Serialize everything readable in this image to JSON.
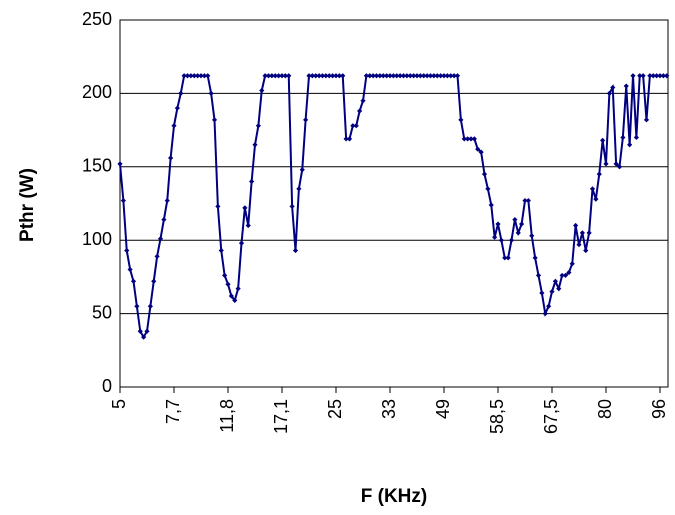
{
  "chart_data": {
    "type": "line",
    "x_label": "F (KHz)",
    "y_label": "Pthr (W)",
    "categories": [
      "5",
      null,
      null,
      null,
      null,
      null,
      null,
      null,
      null,
      null,
      null,
      null,
      null,
      null,
      null,
      null,
      "7,7",
      null,
      null,
      null,
      null,
      null,
      null,
      null,
      null,
      null,
      null,
      null,
      null,
      null,
      null,
      null,
      "11,8",
      null,
      null,
      null,
      null,
      null,
      null,
      null,
      null,
      null,
      null,
      null,
      null,
      null,
      null,
      null,
      "17,1",
      null,
      null,
      null,
      null,
      null,
      null,
      null,
      null,
      null,
      null,
      null,
      null,
      null,
      null,
      null,
      "25",
      null,
      null,
      null,
      null,
      null,
      null,
      null,
      null,
      null,
      null,
      null,
      null,
      null,
      null,
      null,
      "33",
      null,
      null,
      null,
      null,
      null,
      null,
      null,
      null,
      null,
      null,
      null,
      null,
      null,
      null,
      null,
      "49",
      null,
      null,
      null,
      null,
      null,
      null,
      null,
      null,
      null,
      null,
      null,
      null,
      null,
      null,
      null,
      "58,5",
      null,
      null,
      null,
      null,
      null,
      null,
      null,
      null,
      null,
      null,
      null,
      null,
      null,
      null,
      null,
      "67,5",
      null,
      null,
      null,
      null,
      null,
      null,
      null,
      null,
      null,
      null,
      null,
      null,
      null,
      null,
      null,
      "80",
      null,
      null,
      null,
      null,
      null,
      null,
      null,
      null,
      null,
      null,
      null,
      null,
      null,
      null,
      null,
      "96",
      null,
      null
    ],
    "series": [
      {
        "color": "#000080",
        "values": [
          152,
          127,
          93,
          80,
          72,
          55,
          38,
          34,
          38,
          55,
          72,
          89,
          101,
          114,
          127,
          156,
          178,
          190,
          200,
          212,
          212,
          212,
          212,
          212,
          212,
          212,
          212,
          200,
          182,
          123,
          93,
          76,
          70,
          62,
          59,
          67,
          98,
          122,
          110,
          140,
          165,
          178,
          202,
          212,
          212,
          212,
          212,
          212,
          212,
          212,
          212,
          123,
          93,
          135,
          148,
          182,
          212,
          212,
          212,
          212,
          212,
          212,
          212,
          212,
          212,
          212,
          212,
          169,
          169,
          178,
          178,
          188,
          195,
          212,
          212,
          212,
          212,
          212,
          212,
          212,
          212,
          212,
          212,
          212,
          212,
          212,
          212,
          212,
          212,
          212,
          212,
          212,
          212,
          212,
          212,
          212,
          212,
          212,
          212,
          212,
          212,
          182,
          169,
          169,
          169,
          169,
          162,
          160,
          145,
          135,
          124,
          102,
          111,
          100,
          88,
          88,
          100,
          114,
          105,
          111,
          127,
          127,
          103,
          88,
          76,
          64,
          50,
          55,
          65,
          72,
          67,
          76,
          76,
          78,
          84,
          110,
          97,
          105,
          93,
          105,
          135,
          128,
          145,
          168,
          152,
          200,
          204,
          152,
          150,
          170,
          205,
          165,
          212,
          170,
          212,
          212,
          182,
          212,
          212,
          212,
          212,
          212,
          212
        ]
      }
    ],
    "ylim": [
      0,
      250
    ],
    "yticks": [
      0,
      50,
      100,
      150,
      200,
      250
    ],
    "grid": true
  }
}
